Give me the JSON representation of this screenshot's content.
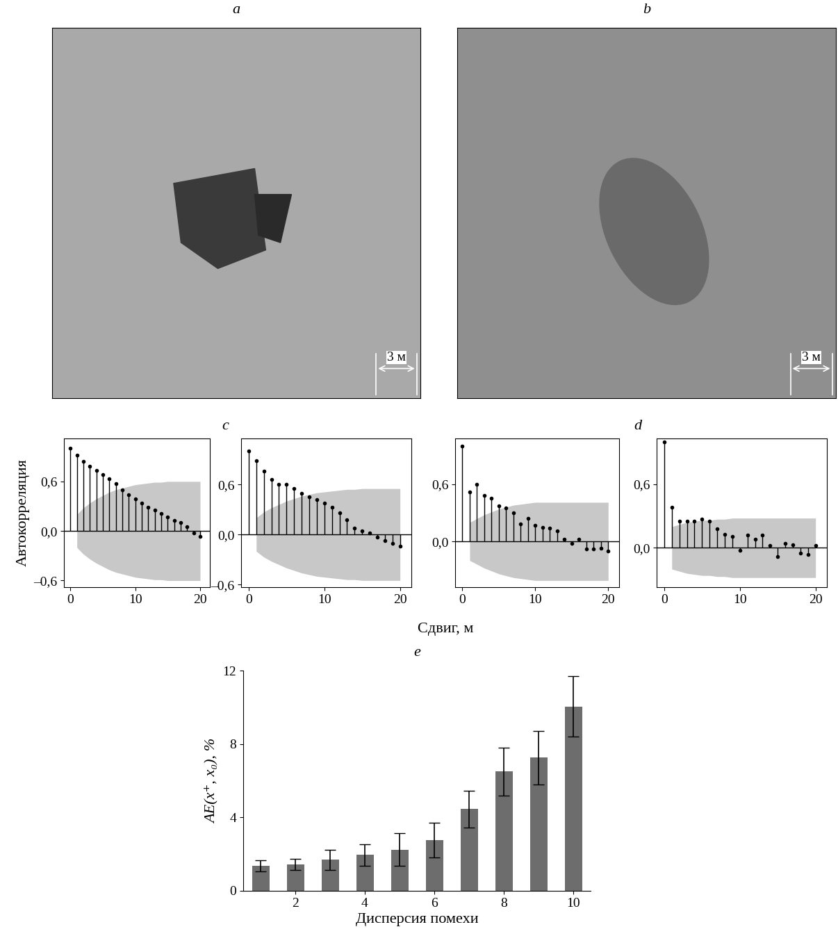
{
  "chart_data": [
    {
      "type": "image",
      "panel_label": "a",
      "scale_label": "3 м"
    },
    {
      "type": "image",
      "panel_label": "b",
      "scale_label": "3 м"
    },
    {
      "type": "stem",
      "group_label": "c",
      "ylabel": "Автокорреляция",
      "x": [
        0,
        1,
        2,
        3,
        4,
        5,
        6,
        7,
        8,
        9,
        10,
        11,
        12,
        13,
        14,
        15,
        16,
        17,
        18,
        19,
        20
      ],
      "values": [
        1.0,
        0.92,
        0.84,
        0.78,
        0.73,
        0.68,
        0.63,
        0.57,
        0.5,
        0.44,
        0.39,
        0.34,
        0.29,
        0.25,
        0.21,
        0.17,
        0.13,
        0.1,
        0.05,
        -0.02,
        -0.07
      ],
      "band": [
        null,
        0.2,
        0.28,
        0.34,
        0.39,
        0.43,
        0.47,
        0.5,
        0.52,
        0.54,
        0.56,
        0.57,
        0.58,
        0.59,
        0.59,
        0.6,
        0.6,
        0.6,
        0.6,
        0.6,
        0.6
      ],
      "color": "#000000",
      "band_color": "#c8c8c8",
      "xlim": [
        -1,
        21.5
      ],
      "xticks": [
        0,
        10,
        20
      ],
      "ylim": [
        -0.68,
        1.12
      ],
      "yticks": [
        {
          "value": -0.6,
          "label": "–0,6"
        },
        {
          "value": 0.0,
          "label": "0,0"
        },
        {
          "value": 0.6,
          "label": "0,6"
        }
      ]
    },
    {
      "type": "stem",
      "xlabel": "Сдвиг, м",
      "x": [
        0,
        1,
        2,
        3,
        4,
        5,
        6,
        7,
        8,
        9,
        10,
        11,
        12,
        13,
        14,
        15,
        16,
        17,
        18,
        19,
        20
      ],
      "values": [
        1.0,
        0.88,
        0.76,
        0.66,
        0.6,
        0.6,
        0.55,
        0.49,
        0.45,
        0.42,
        0.38,
        0.33,
        0.26,
        0.18,
        0.08,
        0.04,
        0.02,
        -0.03,
        -0.07,
        -0.11,
        -0.14
      ],
      "band": [
        null,
        0.2,
        0.27,
        0.32,
        0.36,
        0.4,
        0.43,
        0.46,
        0.48,
        0.5,
        0.51,
        0.52,
        0.53,
        0.54,
        0.54,
        0.55,
        0.55,
        0.55,
        0.55,
        0.55,
        0.55
      ],
      "color": "#000000",
      "band_color": "#c8c8c8",
      "xlim": [
        -1,
        21.5
      ],
      "xticks": [
        0,
        10,
        20
      ],
      "ylim": [
        -0.63,
        1.15
      ],
      "yticks": [
        {
          "value": -0.6,
          "label": "–0,6"
        },
        {
          "value": 0.0,
          "label": "0,0"
        },
        {
          "value": 0.6,
          "label": "0,6"
        }
      ]
    },
    {
      "type": "stem",
      "group_label": "d",
      "x": [
        0,
        1,
        2,
        3,
        4,
        5,
        6,
        7,
        8,
        9,
        10,
        11,
        12,
        13,
        14,
        15,
        16,
        17,
        18,
        19,
        20
      ],
      "values": [
        1.0,
        0.52,
        0.6,
        0.48,
        0.45,
        0.37,
        0.35,
        0.3,
        0.18,
        0.24,
        0.17,
        0.15,
        0.14,
        0.11,
        0.02,
        -0.02,
        0.02,
        -0.08,
        -0.08,
        -0.07,
        -0.1
      ],
      "band": [
        null,
        0.2,
        0.24,
        0.28,
        0.31,
        0.34,
        0.36,
        0.38,
        0.39,
        0.4,
        0.41,
        0.41,
        0.41,
        0.41,
        0.41,
        0.41,
        0.41,
        0.41,
        0.41,
        0.41,
        0.41
      ],
      "color": "#000000",
      "band_color": "#c8c8c8",
      "xlim": [
        -1,
        21.5
      ],
      "xticks": [
        0,
        10,
        20
      ],
      "ylim": [
        -0.48,
        1.08
      ],
      "yticks": [
        {
          "value": 0.0,
          "label": "0,0"
        },
        {
          "value": 0.6,
          "label": "0,6"
        }
      ]
    },
    {
      "type": "stem",
      "x": [
        0,
        1,
        2,
        3,
        4,
        5,
        6,
        7,
        8,
        9,
        10,
        11,
        12,
        13,
        14,
        15,
        16,
        17,
        18,
        19,
        20
      ],
      "values": [
        1.0,
        0.38,
        0.25,
        0.25,
        0.25,
        0.27,
        0.25,
        0.18,
        0.13,
        0.11,
        -0.02,
        0.12,
        0.08,
        0.12,
        0.02,
        -0.08,
        0.04,
        0.03,
        -0.05,
        -0.06,
        0.02
      ],
      "band": [
        null,
        0.2,
        0.22,
        0.24,
        0.25,
        0.26,
        0.26,
        0.27,
        0.27,
        0.28,
        0.28,
        0.28,
        0.28,
        0.28,
        0.28,
        0.28,
        0.28,
        0.28,
        0.28,
        0.28,
        0.28
      ],
      "color": "#000000",
      "band_color": "#c8c8c8",
      "xlim": [
        -1,
        21.5
      ],
      "xticks": [
        0,
        10,
        20
      ],
      "ylim": [
        -0.37,
        1.03
      ],
      "yticks": [
        {
          "value": 0.0,
          "label": "0,0"
        },
        {
          "value": 0.6,
          "label": "0,6"
        }
      ]
    },
    {
      "type": "bar",
      "panel_label": "e",
      "xlabel": "Дисперсия помехи",
      "ylabel": "AE(x⁺, x₀), %",
      "x": [
        1,
        2,
        3,
        4,
        5,
        6,
        7,
        8,
        9,
        10
      ],
      "values": [
        1.35,
        1.45,
        1.7,
        1.95,
        2.25,
        2.75,
        4.45,
        6.5,
        7.25,
        10.05
      ],
      "errors": [
        0.3,
        0.3,
        0.55,
        0.6,
        0.9,
        0.95,
        1.0,
        1.3,
        1.45,
        1.65
      ],
      "color": "#6d6d6d",
      "xlim": [
        0.5,
        10.5
      ],
      "xticks": [
        2,
        4,
        6,
        8,
        10
      ],
      "ylim": [
        0,
        12
      ],
      "yticks": [
        0,
        4,
        8,
        12
      ]
    }
  ]
}
